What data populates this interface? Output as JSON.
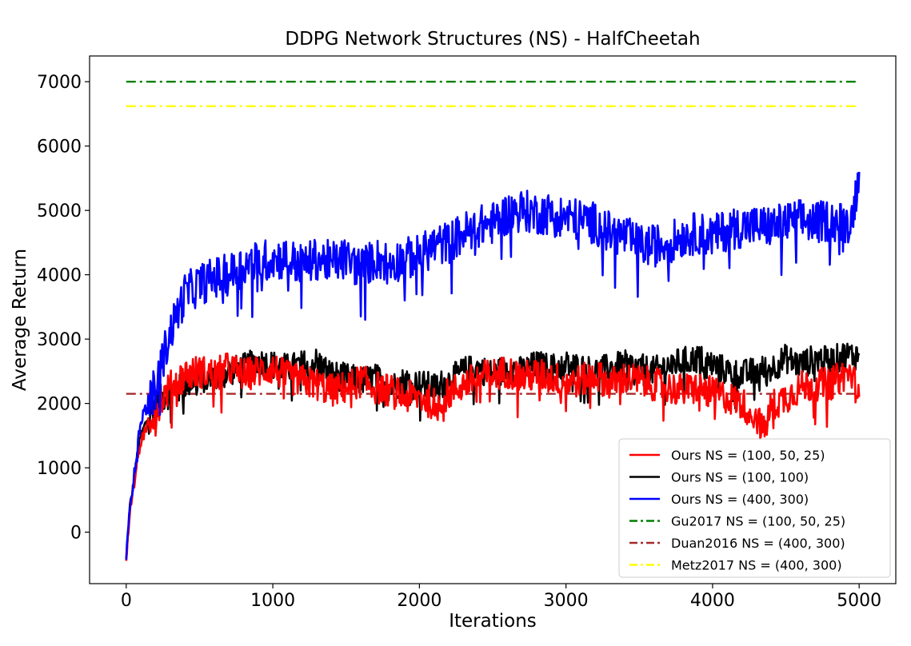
{
  "chart_data": {
    "type": "line",
    "title": "DDPG Network Structures (NS) - HalfCheetah",
    "xlabel": "Iterations",
    "ylabel": "Average Return",
    "xlim": [
      -250,
      5250
    ],
    "ylim": [
      -800,
      7400
    ],
    "xticks": [
      0,
      1000,
      2000,
      3000,
      4000,
      5000
    ],
    "yticks": [
      0,
      1000,
      2000,
      3000,
      4000,
      5000,
      6000,
      7000
    ],
    "grid": false,
    "legend_position": "lower-right",
    "series": [
      {
        "name": "Ours NS = (100, 50, 25)",
        "color": "#ff0000",
        "style": "solid",
        "x": [
          0,
          25,
          50,
          75,
          100,
          150,
          200,
          250,
          300,
          350,
          400,
          500,
          600,
          700,
          800,
          900,
          1000,
          1100,
          1200,
          1300,
          1400,
          1500,
          1600,
          1700,
          1800,
          1900,
          2000,
          2100,
          2200,
          2300,
          2400,
          2500,
          2600,
          2700,
          2800,
          2900,
          3000,
          3100,
          3200,
          3300,
          3400,
          3500,
          3600,
          3700,
          3800,
          3900,
          4000,
          4100,
          4200,
          4300,
          4350,
          4400,
          4500,
          4600,
          4700,
          4800,
          4900,
          4950,
          5000
        ],
        "y": [
          -450,
          350,
          700,
          1100,
          1400,
          1700,
          1900,
          2100,
          2250,
          2350,
          2450,
          2500,
          2450,
          2550,
          2450,
          2500,
          2550,
          2400,
          2350,
          2300,
          2200,
          2250,
          2350,
          2250,
          2200,
          2100,
          2100,
          2000,
          2150,
          2300,
          2400,
          2450,
          2500,
          2400,
          2450,
          2400,
          2350,
          2350,
          2450,
          2300,
          2400,
          2350,
          2300,
          2250,
          2200,
          2250,
          2150,
          2100,
          2000,
          1800,
          1550,
          1950,
          2100,
          2250,
          2300,
          2300,
          2450,
          2450,
          2100
        ]
      },
      {
        "name": "Ours NS = (100, 100)",
        "color": "#000000",
        "style": "solid",
        "x": [
          0,
          25,
          50,
          75,
          100,
          150,
          200,
          250,
          300,
          350,
          400,
          500,
          600,
          700,
          800,
          900,
          1000,
          1100,
          1200,
          1300,
          1400,
          1500,
          1600,
          1700,
          1800,
          1900,
          2000,
          2100,
          2200,
          2300,
          2400,
          2500,
          2600,
          2700,
          2800,
          2900,
          3000,
          3100,
          3200,
          3300,
          3400,
          3500,
          3600,
          3700,
          3800,
          3900,
          4000,
          4100,
          4200,
          4300,
          4400,
          4500,
          4600,
          4700,
          4800,
          4900,
          5000
        ],
        "y": [
          -450,
          400,
          750,
          1200,
          1500,
          1800,
          2000,
          2100,
          2150,
          2200,
          2300,
          2400,
          2350,
          2500,
          2550,
          2650,
          2600,
          2550,
          2600,
          2650,
          2450,
          2400,
          2350,
          2400,
          2250,
          2350,
          2300,
          2250,
          2350,
          2500,
          2550,
          2450,
          2550,
          2500,
          2600,
          2550,
          2600,
          2550,
          2500,
          2550,
          2600,
          2550,
          2500,
          2600,
          2650,
          2700,
          2600,
          2500,
          2450,
          2500,
          2550,
          2700,
          2600,
          2700,
          2650,
          2750,
          2750
        ]
      },
      {
        "name": "Ours NS = (400, 300)",
        "color": "#0000ff",
        "style": "solid",
        "x": [
          0,
          25,
          50,
          75,
          100,
          150,
          200,
          250,
          300,
          350,
          400,
          500,
          600,
          700,
          800,
          900,
          1000,
          1100,
          1200,
          1300,
          1400,
          1500,
          1600,
          1700,
          1800,
          1900,
          2000,
          2100,
          2200,
          2300,
          2400,
          2500,
          2600,
          2700,
          2800,
          2900,
          3000,
          3100,
          3200,
          3300,
          3400,
          3500,
          3600,
          3700,
          3800,
          3900,
          4000,
          4100,
          4200,
          4300,
          4400,
          4500,
          4600,
          4700,
          4800,
          4900,
          4950,
          5000
        ],
        "y": [
          -450,
          450,
          800,
          1300,
          1750,
          2000,
          2250,
          2700,
          3100,
          3400,
          3700,
          3850,
          3950,
          4000,
          4150,
          4200,
          4250,
          4250,
          4150,
          4250,
          4200,
          4250,
          4100,
          4250,
          4200,
          4250,
          4300,
          4450,
          4500,
          4650,
          4750,
          4800,
          4950,
          5000,
          4950,
          4950,
          4900,
          4850,
          4800,
          4650,
          4600,
          4450,
          4450,
          4500,
          4600,
          4650,
          4600,
          4700,
          4750,
          4750,
          4750,
          4800,
          4850,
          4800,
          4850,
          4800,
          4850,
          5600
        ]
      },
      {
        "name": "Gu2017 NS = (100, 50, 25)",
        "color": "#008000",
        "style": "dashdot",
        "x": [
          0,
          5000
        ],
        "y": [
          7000,
          7000
        ]
      },
      {
        "name": "Duan2016 NS = (400, 300)",
        "color": "#a52a2a",
        "style": "dashdot",
        "x": [
          0,
          5000
        ],
        "y": [
          2150,
          2150
        ]
      },
      {
        "name": "Metz2017 NS = (400, 300)",
        "color": "#ffff00",
        "style": "dashdot",
        "x": [
          0,
          5000
        ],
        "y": [
          6620,
          6620
        ]
      }
    ]
  }
}
